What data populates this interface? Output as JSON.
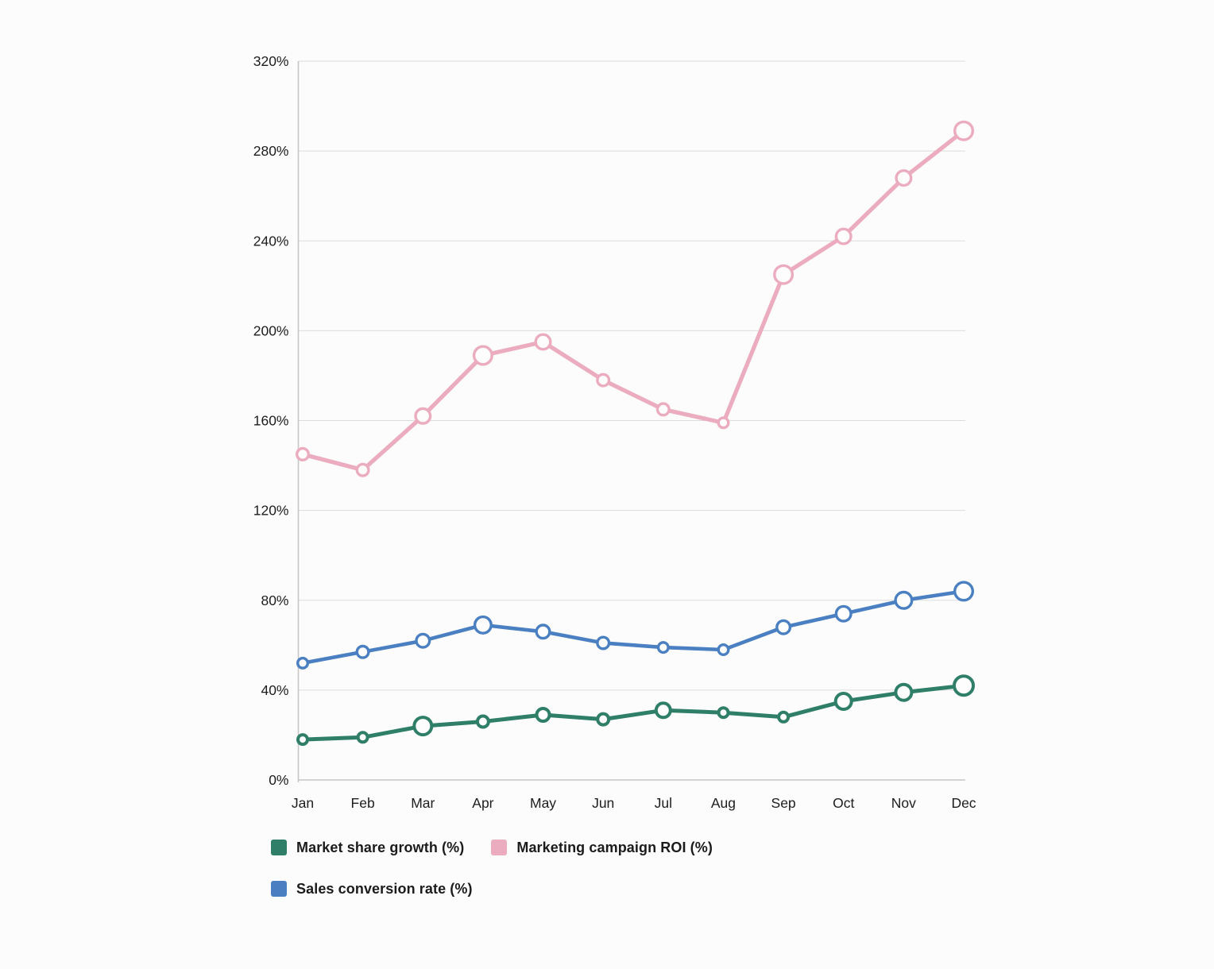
{
  "canvas": {
    "background": "#fcfcfc"
  },
  "chart_data": {
    "type": "line",
    "title": "",
    "categories": [
      "Jan",
      "Feb",
      "Mar",
      "Apr",
      "May",
      "Jun",
      "Jul",
      "Aug",
      "Sep",
      "Oct",
      "Nov",
      "Dec"
    ],
    "ylim": [
      0,
      320
    ],
    "ytick_step": 40,
    "tick_suffix": "%",
    "grid": true,
    "legend_position": "bottom-left",
    "style": {
      "grid_color": "#dcdcdc",
      "axis_color": "#c6c6c6",
      "tick_label_color": "#1d1d1d",
      "marker_fill": "#fdfdfd",
      "tick_font_size": 17.5
    },
    "series": [
      {
        "name": "Market share growth (%)",
        "color": "#2f7f68",
        "line_width": 5,
        "marker_stroke_width": 4,
        "values": [
          18,
          19,
          24,
          26,
          29,
          27,
          31,
          30,
          28,
          35,
          39,
          42
        ],
        "marker_radii": [
          8,
          8,
          13,
          9,
          10,
          9,
          11,
          8,
          8,
          12,
          12,
          14
        ]
      },
      {
        "name": "Marketing campaign ROI (%)",
        "color": "#ecacbf",
        "line_width": 5.2,
        "marker_stroke_width": 3.4,
        "values": [
          145,
          138,
          162,
          189,
          195,
          178,
          165,
          159,
          225,
          242,
          268,
          289
        ],
        "marker_radii": [
          9,
          9,
          11,
          13,
          11,
          9,
          9,
          8,
          13,
          11,
          11,
          13
        ]
      },
      {
        "name": "Sales conversion rate (%)",
        "color": "#4a80c2",
        "line_width": 4.6,
        "marker_stroke_width": 3.4,
        "values": [
          52,
          57,
          62,
          69,
          66,
          61,
          59,
          58,
          68,
          74,
          80,
          84
        ],
        "marker_radii": [
          8,
          9,
          10,
          12,
          10,
          9,
          8,
          8,
          10,
          11,
          12,
          13
        ]
      }
    ]
  }
}
